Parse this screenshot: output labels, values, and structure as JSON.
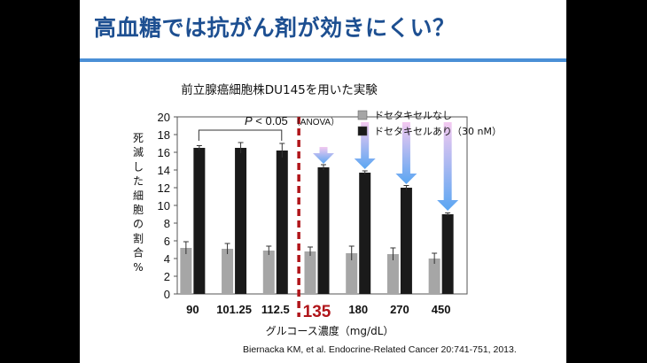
{
  "slide": {
    "title": "高血糖では抗がん剤が効きにくい？",
    "citation": "Biernacka KM, et al. Endocrine-Related Cancer 20:741-751, 2013."
  },
  "chart_data": {
    "type": "bar",
    "title": "前立腺癌細胞株DU145を用いた実験",
    "xlabel": "グルコース濃度（mg/dL）",
    "ylabel": "死滅した細胞の割合%",
    "ylim": [
      0,
      20
    ],
    "yticks": [
      0,
      2,
      4,
      6,
      8,
      10,
      12,
      14,
      16,
      18,
      20
    ],
    "categories": [
      "90",
      "101.25",
      "112.5",
      "135",
      "180",
      "270",
      "450"
    ],
    "highlight_category": "135",
    "series": [
      {
        "name": "ドセタキセルなし",
        "color": "#a6a6a6",
        "values": [
          5.2,
          5.1,
          4.9,
          4.8,
          4.6,
          4.5,
          4.0
        ],
        "errors": [
          0.7,
          0.6,
          0.5,
          0.5,
          0.8,
          0.7,
          0.6
        ]
      },
      {
        "name": "ドセタキセルあり（30 nM）",
        "color": "#1a1a1a",
        "values": [
          16.5,
          16.5,
          16.2,
          14.3,
          13.7,
          12.0,
          9.0
        ],
        "errors": [
          0.25,
          0.6,
          0.8,
          0.3,
          0.2,
          0.25,
          0.15
        ]
      }
    ],
    "annotation": {
      "p_label": "P",
      "p_text": " < 0.05",
      "test": "（ANOVA）"
    },
    "arrow_color": "#3d8fe0",
    "divider_color": "#b0151a"
  }
}
